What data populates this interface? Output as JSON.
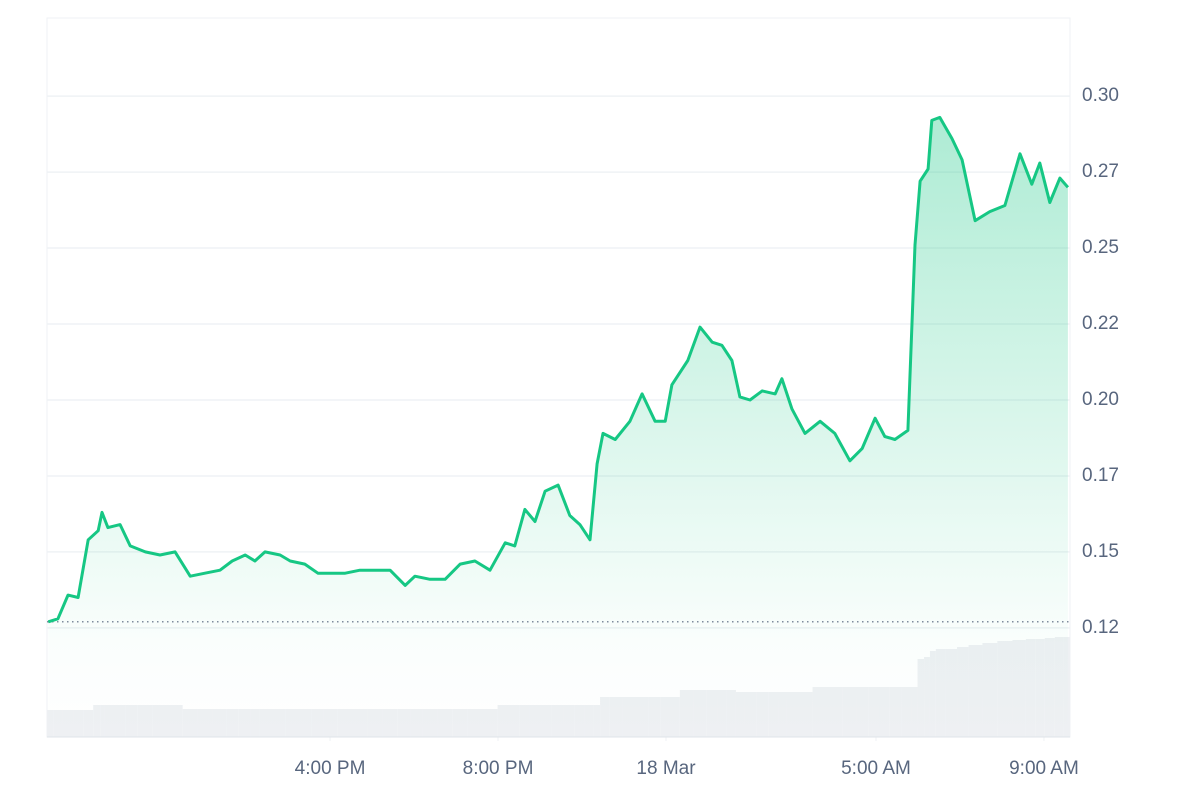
{
  "chart_data": {
    "type": "line",
    "color": "#16c784",
    "grid": true,
    "x": [
      9.29,
      9.52,
      9.76,
      10.0,
      10.24,
      10.48,
      10.57,
      10.71,
      11.0,
      11.24,
      11.6,
      11.95,
      12.31,
      12.67,
      13.02,
      13.38,
      13.67,
      13.98,
      14.21,
      14.45,
      14.81,
      15.05,
      15.4,
      15.71,
      16.0,
      16.36,
      16.71,
      17.07,
      17.43,
      17.79,
      18.02,
      18.38,
      18.74,
      19.1,
      19.45,
      19.81,
      20.17,
      20.4,
      20.64,
      20.88,
      21.12,
      21.43,
      21.71,
      21.95,
      22.19,
      22.36,
      22.5,
      22.79,
      23.14,
      23.43,
      23.74,
      23.98,
      24.14,
      24.52,
      24.81,
      25.1,
      25.33,
      25.57,
      25.76,
      26.0,
      26.29,
      26.6,
      26.76,
      27.0,
      27.31,
      27.67,
      28.02,
      28.38,
      28.67,
      28.98,
      29.21,
      29.45,
      29.76,
      29.93,
      30.05,
      30.24,
      30.33,
      30.52,
      30.81,
      31.05,
      31.36,
      31.71,
      32.07,
      32.43,
      32.71,
      32.9,
      33.14,
      33.38,
      33.57
    ],
    "values": [
      0.127,
      0.128,
      0.1358,
      0.135,
      0.154,
      0.157,
      0.163,
      0.158,
      0.159,
      0.152,
      0.15,
      0.149,
      0.15,
      0.142,
      0.143,
      0.144,
      0.147,
      0.149,
      0.147,
      0.15,
      0.149,
      0.147,
      0.146,
      0.143,
      0.143,
      0.143,
      0.144,
      0.144,
      0.144,
      0.139,
      0.142,
      0.141,
      0.141,
      0.146,
      0.147,
      0.144,
      0.153,
      0.152,
      0.164,
      0.16,
      0.17,
      0.172,
      0.162,
      0.159,
      0.154,
      0.179,
      0.189,
      0.187,
      0.193,
      0.202,
      0.193,
      0.193,
      0.205,
      0.213,
      0.224,
      0.219,
      0.218,
      0.213,
      0.201,
      0.2,
      0.203,
      0.202,
      0.207,
      0.197,
      0.189,
      0.193,
      0.189,
      0.18,
      0.184,
      0.194,
      0.188,
      0.187,
      0.19,
      0.251,
      0.272,
      0.276,
      0.292,
      0.293,
      0.286,
      0.279,
      0.259,
      0.262,
      0.264,
      0.281,
      0.271,
      0.278,
      0.265,
      0.273,
      0.27
    ],
    "volume": {
      "color": "#eef0f3",
      "lim": [
        0,
        109
      ],
      "values": [
        27,
        27,
        27,
        27,
        27,
        32,
        32,
        32,
        32,
        32,
        32,
        32,
        32,
        28,
        28,
        28,
        28,
        28,
        28,
        28,
        28,
        28,
        28,
        28,
        28,
        28,
        28,
        28,
        28,
        28,
        28,
        28,
        28,
        28,
        28,
        28,
        32,
        32,
        32,
        32,
        32,
        32,
        32,
        32,
        32,
        32,
        40,
        40,
        40,
        40,
        40,
        40,
        40,
        47,
        47,
        47,
        47,
        47,
        45,
        45,
        45,
        45,
        45,
        45,
        45,
        50,
        50,
        50,
        50,
        50,
        50,
        50,
        50,
        50,
        78,
        80,
        86,
        88,
        88,
        90,
        92,
        94,
        96,
        97,
        98,
        98,
        99,
        100,
        100
      ]
    },
    "xlim": [
      9.26,
      33.62
    ],
    "xticks": [
      {
        "value": 16,
        "label": "4:00 PM"
      },
      {
        "value": 20,
        "label": "8:00 PM"
      },
      {
        "value": 24,
        "label": "18 Mar"
      },
      {
        "value": 29,
        "label": "5:00 AM"
      },
      {
        "value": 33,
        "label": "9:00 AM"
      }
    ],
    "ylim": [
      0.0891,
      0.3257
    ],
    "yticks": [
      {
        "value": 0.125,
        "label": "0.12"
      },
      0.15,
      {
        "value": 0.175,
        "label": "0.17"
      },
      {
        "value": 0.2,
        "label": "0.20"
      },
      {
        "value": 0.225,
        "label": "0.22"
      },
      0.25,
      {
        "value": 0.275,
        "label": "0.27"
      },
      {
        "value": 0.3,
        "label": "0.30"
      }
    ]
  }
}
